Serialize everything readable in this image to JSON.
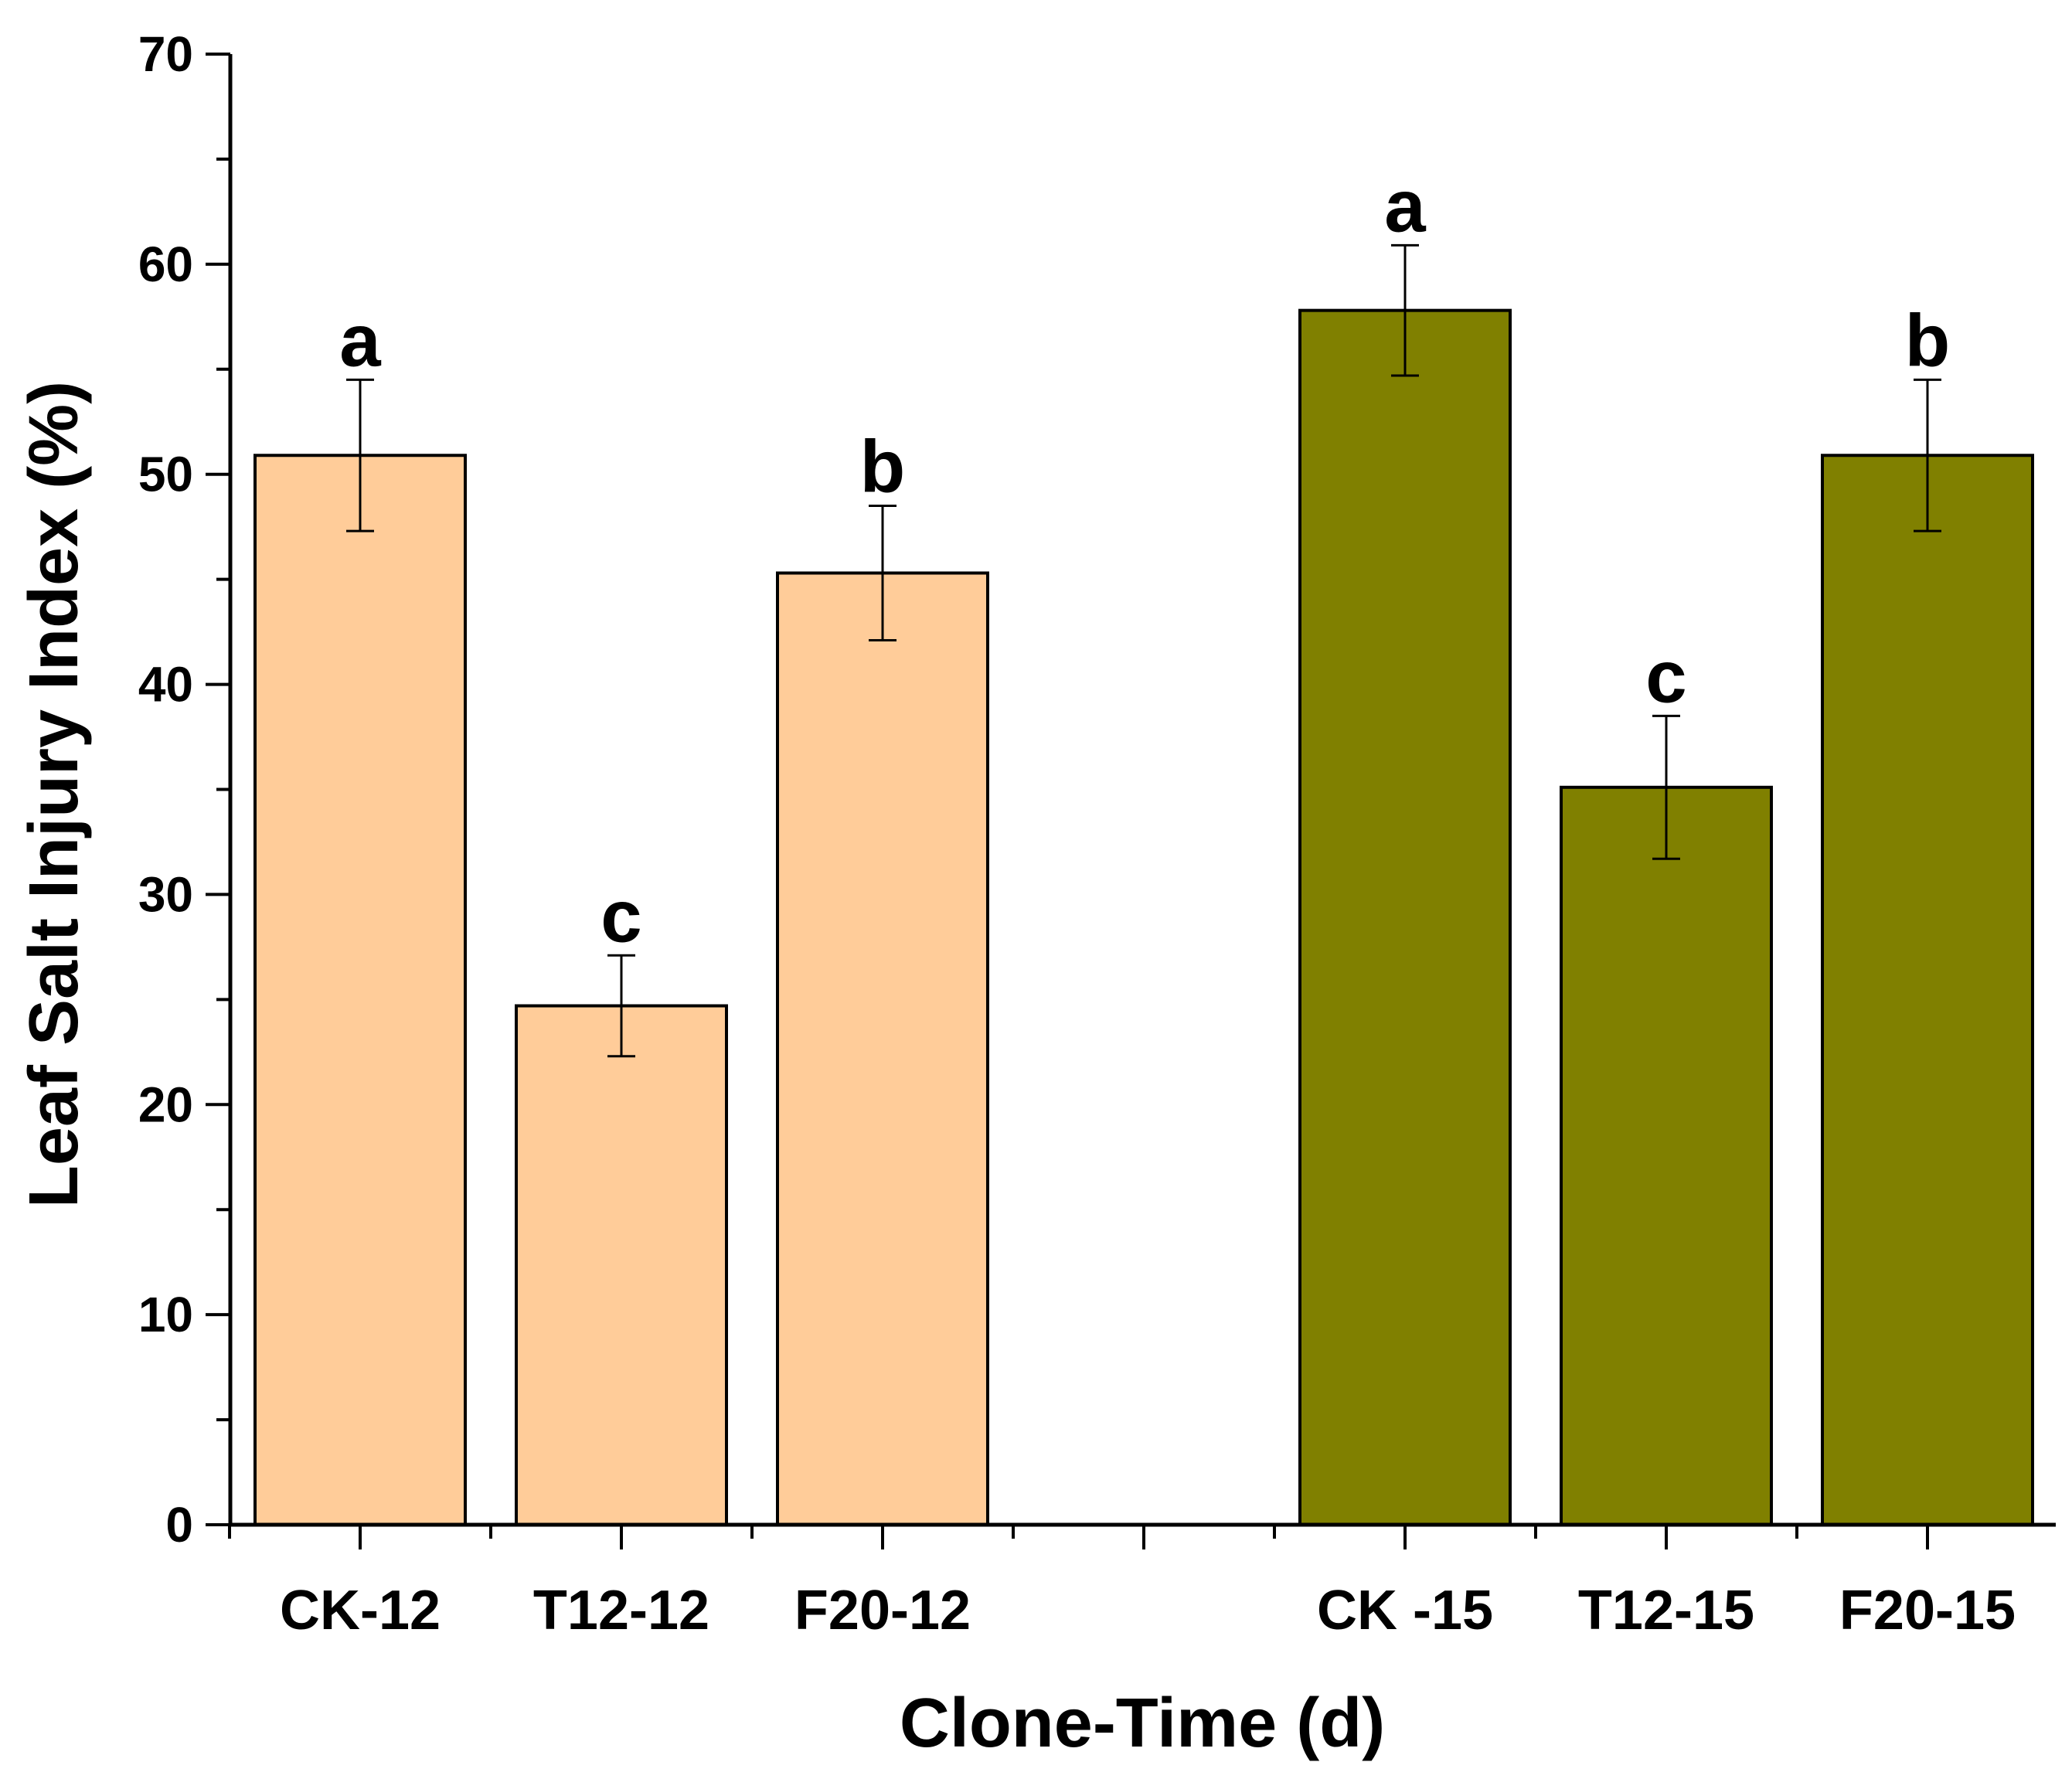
{
  "chart_data": {
    "type": "bar",
    "title": "",
    "xlabel": "Clone-Time (d)",
    "ylabel": "Leaf Salt Injury Index (%)",
    "ylim": [
      0,
      70
    ],
    "yticks": [
      "0",
      "10",
      "20",
      "30",
      "40",
      "50",
      "60",
      "70"
    ],
    "grid": false,
    "legend": "none",
    "categories": [
      "CK-12",
      "T12-12",
      "F20-12",
      "",
      "CK -15",
      "T12-15",
      "F20-15"
    ],
    "values": [
      50.9,
      24.7,
      45.3,
      null,
      57.8,
      35.1,
      50.9
    ],
    "errors": [
      3.6,
      2.4,
      3.2,
      null,
      3.1,
      3.4,
      3.6
    ],
    "significance_letters": [
      "a",
      "c",
      "b",
      "",
      "a",
      "c",
      "b"
    ],
    "colors": {
      "time12": "#FFCC99",
      "time15": "#808000",
      "edge": "#000000"
    },
    "bar_colors": [
      "#FFCC99",
      "#FFCC99",
      "#FFCC99",
      null,
      "#808000",
      "#808000",
      "#808000"
    ]
  }
}
